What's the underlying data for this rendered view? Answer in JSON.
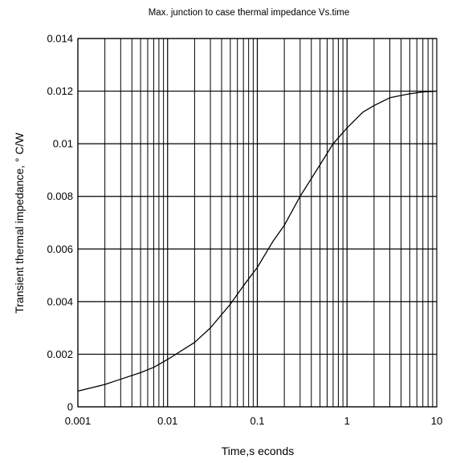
{
  "chart_data": {
    "type": "line",
    "title": "Max. junction to case thermal impedance Vs.time",
    "xlabel": "Time,s econds",
    "ylabel": "Transient thermal impedance, ° C/W",
    "x_scale": "log",
    "xlim": [
      0.001,
      10
    ],
    "ylim": [
      0,
      0.014
    ],
    "x_ticks": [
      0.001,
      0.01,
      0.1,
      1,
      10
    ],
    "x_tick_labels": [
      "0.001",
      "0.01",
      "0.1",
      "1",
      "10"
    ],
    "y_ticks": [
      0,
      0.002,
      0.004,
      0.006,
      0.008,
      0.01,
      0.012,
      0.014
    ],
    "y_tick_labels": [
      "0",
      "0.002",
      "0.004",
      "0.006",
      "0.008",
      "0.01",
      "0.012",
      "0.014"
    ],
    "grid": true,
    "series": [
      {
        "color": "#000000",
        "x": [
          0.001,
          0.002,
          0.003,
          0.005,
          0.007,
          0.01,
          0.02,
          0.03,
          0.05,
          0.07,
          0.1,
          0.15,
          0.2,
          0.3,
          0.5,
          0.7,
          1,
          1.5,
          2,
          3,
          5,
          7,
          10
        ],
        "y": [
          0.0006,
          0.00085,
          0.00105,
          0.0013,
          0.0015,
          0.0018,
          0.00245,
          0.003,
          0.0039,
          0.0046,
          0.0053,
          0.0063,
          0.0069,
          0.008,
          0.0092,
          0.01,
          0.0106,
          0.0112,
          0.01145,
          0.01175,
          0.0119,
          0.01197,
          0.012
        ]
      }
    ]
  }
}
